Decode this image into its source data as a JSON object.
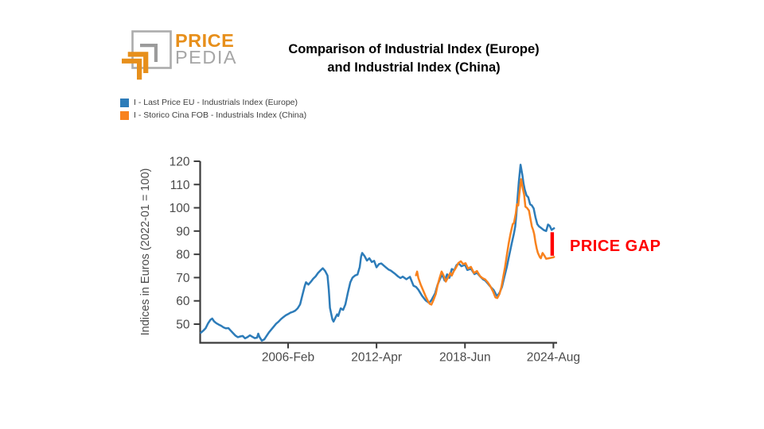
{
  "logo": {
    "text_top": "PRICE",
    "text_bottom": "PEDIA",
    "orange": "#E78F1B",
    "gray": "#A6A6A6"
  },
  "title": {
    "line1": "Comparison of Industrial Index (Europe)",
    "line2": "and Industrial Index (China)"
  },
  "legend": {
    "items": [
      {
        "label": "I - Last Price EU - Industrials Index (Europe)",
        "color": "#2D7CB9"
      },
      {
        "label": "I - Storico Cina FOB - Industrials Index (China)",
        "color": "#F8821E"
      }
    ]
  },
  "annotation": {
    "label": "PRICE GAP",
    "color": "#FF0000"
  },
  "chart_data": {
    "type": "line",
    "title": "Comparison of Industrial Index (Europe) and Industrial Index (China)",
    "xlabel": "",
    "ylabel": "Indices in Euros (2022-01 = 100)",
    "xlim": [
      1999.95,
      2024.75
    ],
    "ylim": [
      42,
      120.6
    ],
    "grid": false,
    "legend_position": "top-left",
    "y_ticks": [
      50,
      60,
      70,
      80,
      90,
      100,
      110,
      120
    ],
    "x_ticks": [
      {
        "label": "2006-Feb",
        "year": 2006.083
      },
      {
        "label": "2012-Apr",
        "year": 2012.25
      },
      {
        "label": "2018-Jun",
        "year": 2018.417
      },
      {
        "label": "2024-Aug",
        "year": 2024.583
      }
    ],
    "axis_color": "#3C3C3C",
    "tick_label_color": "#4B4B4B",
    "price_gap_bar": {
      "year": 2024.5,
      "value_top": 89.5,
      "value_bottom": 79.4,
      "color": "#FF0000"
    },
    "series": [
      {
        "name": "I - Last Price EU - Industrials Index (Europe)",
        "color": "#2D7CB9",
        "points": [
          [
            2000.0,
            46.3
          ],
          [
            2000.17,
            47.2
          ],
          [
            2000.33,
            48.2
          ],
          [
            2000.5,
            50.3
          ],
          [
            2000.67,
            51.9
          ],
          [
            2000.79,
            52.4
          ],
          [
            2000.92,
            51.2
          ],
          [
            2001.08,
            50.4
          ],
          [
            2001.25,
            49.8
          ],
          [
            2001.42,
            49.3
          ],
          [
            2001.58,
            48.6
          ],
          [
            2001.75,
            48.2
          ],
          [
            2001.92,
            48.3
          ],
          [
            2002.08,
            47.2
          ],
          [
            2002.25,
            46.1
          ],
          [
            2002.42,
            45.0
          ],
          [
            2002.58,
            44.4
          ],
          [
            2002.75,
            44.7
          ],
          [
            2002.92,
            44.9
          ],
          [
            2003.08,
            43.9
          ],
          [
            2003.25,
            44.4
          ],
          [
            2003.42,
            45.2
          ],
          [
            2003.58,
            44.6
          ],
          [
            2003.75,
            44.0
          ],
          [
            2003.92,
            44.2
          ],
          [
            2004.0,
            45.9
          ],
          [
            2004.08,
            44.6
          ],
          [
            2004.25,
            42.9
          ],
          [
            2004.42,
            43.4
          ],
          [
            2004.58,
            44.9
          ],
          [
            2004.75,
            46.5
          ],
          [
            2004.92,
            47.7
          ],
          [
            2005.08,
            48.9
          ],
          [
            2005.25,
            50.2
          ],
          [
            2005.42,
            51.1
          ],
          [
            2005.58,
            52.1
          ],
          [
            2005.75,
            53.0
          ],
          [
            2005.92,
            53.8
          ],
          [
            2006.08,
            54.3
          ],
          [
            2006.25,
            54.9
          ],
          [
            2006.42,
            55.3
          ],
          [
            2006.58,
            55.8
          ],
          [
            2006.75,
            56.8
          ],
          [
            2006.92,
            58.5
          ],
          [
            2007.08,
            62.5
          ],
          [
            2007.25,
            66.5
          ],
          [
            2007.33,
            68.0
          ],
          [
            2007.5,
            67.0
          ],
          [
            2007.67,
            68.2
          ],
          [
            2007.83,
            69.5
          ],
          [
            2008.0,
            70.5
          ],
          [
            2008.17,
            72.0
          ],
          [
            2008.33,
            73.0
          ],
          [
            2008.5,
            74.0
          ],
          [
            2008.67,
            72.8
          ],
          [
            2008.83,
            70.9
          ],
          [
            2008.92,
            65.0
          ],
          [
            2009.0,
            57.0
          ],
          [
            2009.17,
            52.1
          ],
          [
            2009.25,
            51.1
          ],
          [
            2009.42,
            53.2
          ],
          [
            2009.5,
            54.2
          ],
          [
            2009.58,
            53.5
          ],
          [
            2009.75,
            56.8
          ],
          [
            2009.92,
            56.1
          ],
          [
            2010.08,
            58.5
          ],
          [
            2010.25,
            63.5
          ],
          [
            2010.42,
            68.0
          ],
          [
            2010.58,
            70.0
          ],
          [
            2010.75,
            70.9
          ],
          [
            2010.92,
            71.3
          ],
          [
            2011.08,
            74.5
          ],
          [
            2011.17,
            79.0
          ],
          [
            2011.25,
            80.6
          ],
          [
            2011.42,
            79.2
          ],
          [
            2011.58,
            77.3
          ],
          [
            2011.75,
            78.3
          ],
          [
            2011.92,
            76.7
          ],
          [
            2012.08,
            77.2
          ],
          [
            2012.25,
            74.4
          ],
          [
            2012.42,
            75.8
          ],
          [
            2012.58,
            76.1
          ],
          [
            2012.75,
            75.2
          ],
          [
            2012.92,
            74.3
          ],
          [
            2013.08,
            73.5
          ],
          [
            2013.25,
            73.0
          ],
          [
            2013.5,
            71.8
          ],
          [
            2013.75,
            70.5
          ],
          [
            2013.92,
            69.8
          ],
          [
            2014.08,
            70.4
          ],
          [
            2014.33,
            69.3
          ],
          [
            2014.58,
            70.3
          ],
          [
            2014.83,
            66.5
          ],
          [
            2015.0,
            66.0
          ],
          [
            2015.17,
            64.8
          ],
          [
            2015.42,
            62.2
          ],
          [
            2015.67,
            60.2
          ],
          [
            2015.92,
            59.1
          ],
          [
            2016.08,
            60.3
          ],
          [
            2016.33,
            63.2
          ],
          [
            2016.5,
            66.8
          ],
          [
            2016.67,
            69.3
          ],
          [
            2016.83,
            71.4
          ],
          [
            2017.0,
            68.7
          ],
          [
            2017.17,
            71.4
          ],
          [
            2017.33,
            69.9
          ],
          [
            2017.5,
            73.7
          ],
          [
            2017.67,
            73.1
          ],
          [
            2017.83,
            75.4
          ],
          [
            2018.0,
            76.0
          ],
          [
            2018.17,
            74.9
          ],
          [
            2018.42,
            75.5
          ],
          [
            2018.58,
            73.3
          ],
          [
            2018.83,
            73.8
          ],
          [
            2019.08,
            71.5
          ],
          [
            2019.25,
            72.1
          ],
          [
            2019.5,
            70.3
          ],
          [
            2019.67,
            69.3
          ],
          [
            2019.83,
            68.7
          ],
          [
            2020.0,
            67.5
          ],
          [
            2020.17,
            66.3
          ],
          [
            2020.42,
            64.6
          ],
          [
            2020.58,
            62.8
          ],
          [
            2020.67,
            62.1
          ],
          [
            2020.83,
            63.5
          ],
          [
            2021.0,
            66.0
          ],
          [
            2021.17,
            70.5
          ],
          [
            2021.33,
            74.5
          ],
          [
            2021.5,
            79.5
          ],
          [
            2021.67,
            84.5
          ],
          [
            2021.83,
            89.0
          ],
          [
            2021.92,
            92.0
          ],
          [
            2022.0,
            97.0
          ],
          [
            2022.08,
            104.0
          ],
          [
            2022.17,
            111.0
          ],
          [
            2022.29,
            118.5
          ],
          [
            2022.42,
            114.0
          ],
          [
            2022.5,
            110.5
          ],
          [
            2022.58,
            107.9
          ],
          [
            2022.71,
            105.3
          ],
          [
            2022.83,
            104.5
          ],
          [
            2022.96,
            101.5
          ],
          [
            2023.08,
            101.0
          ],
          [
            2023.21,
            99.7
          ],
          [
            2023.33,
            96.0
          ],
          [
            2023.46,
            93.0
          ],
          [
            2023.58,
            92.0
          ],
          [
            2023.75,
            91.2
          ],
          [
            2023.92,
            90.4
          ],
          [
            2024.08,
            90.0
          ],
          [
            2024.21,
            92.8
          ],
          [
            2024.33,
            92.2
          ],
          [
            2024.46,
            90.5
          ],
          [
            2024.63,
            91.2
          ]
        ]
      },
      {
        "name": "I - Storico Cina FOB - Industrials Index (China)",
        "color": "#F8821E",
        "points": [
          [
            2015.0,
            71.0
          ],
          [
            2015.08,
            72.6
          ],
          [
            2015.17,
            69.8
          ],
          [
            2015.33,
            67.0
          ],
          [
            2015.5,
            64.5
          ],
          [
            2015.67,
            62.0
          ],
          [
            2015.83,
            60.0
          ],
          [
            2015.96,
            58.7
          ],
          [
            2016.08,
            58.4
          ],
          [
            2016.21,
            60.2
          ],
          [
            2016.38,
            63.0
          ],
          [
            2016.5,
            66.5
          ],
          [
            2016.63,
            69.5
          ],
          [
            2016.79,
            72.6
          ],
          [
            2016.92,
            71.0
          ],
          [
            2017.08,
            68.3
          ],
          [
            2017.25,
            70.2
          ],
          [
            2017.38,
            72.0
          ],
          [
            2017.5,
            70.9
          ],
          [
            2017.63,
            72.7
          ],
          [
            2017.79,
            74.3
          ],
          [
            2017.96,
            76.3
          ],
          [
            2018.13,
            77.0
          ],
          [
            2018.29,
            75.8
          ],
          [
            2018.46,
            76.2
          ],
          [
            2018.63,
            73.9
          ],
          [
            2018.83,
            74.6
          ],
          [
            2019.04,
            72.0
          ],
          [
            2019.25,
            72.8
          ],
          [
            2019.46,
            70.7
          ],
          [
            2019.63,
            69.8
          ],
          [
            2019.83,
            69.2
          ],
          [
            2020.0,
            68.0
          ],
          [
            2020.17,
            66.5
          ],
          [
            2020.38,
            64.0
          ],
          [
            2020.54,
            61.5
          ],
          [
            2020.67,
            61.2
          ],
          [
            2020.83,
            63.0
          ],
          [
            2020.96,
            66.0
          ],
          [
            2021.08,
            70.0
          ],
          [
            2021.21,
            74.5
          ],
          [
            2021.33,
            79.5
          ],
          [
            2021.46,
            84.5
          ],
          [
            2021.58,
            88.5
          ],
          [
            2021.67,
            91.0
          ],
          [
            2021.75,
            93.0
          ],
          [
            2021.83,
            93.5
          ],
          [
            2021.96,
            97.5
          ],
          [
            2022.04,
            101.5
          ],
          [
            2022.13,
            101.0
          ],
          [
            2022.21,
            106.0
          ],
          [
            2022.29,
            110.5
          ],
          [
            2022.33,
            112.3
          ],
          [
            2022.46,
            108.0
          ],
          [
            2022.54,
            105.6
          ],
          [
            2022.63,
            100.5
          ],
          [
            2022.75,
            99.9
          ],
          [
            2022.88,
            98.8
          ],
          [
            2023.0,
            94.8
          ],
          [
            2023.08,
            92.0
          ],
          [
            2023.17,
            90.5
          ],
          [
            2023.25,
            88.6
          ],
          [
            2023.33,
            85.2
          ],
          [
            2023.42,
            82.5
          ],
          [
            2023.5,
            80.6
          ],
          [
            2023.63,
            78.9
          ],
          [
            2023.71,
            78.3
          ],
          [
            2023.83,
            80.6
          ],
          [
            2023.96,
            79.4
          ],
          [
            2024.08,
            78.1
          ],
          [
            2024.25,
            78.3
          ],
          [
            2024.42,
            78.5
          ],
          [
            2024.58,
            78.7
          ],
          [
            2024.63,
            78.9
          ]
        ]
      }
    ]
  }
}
